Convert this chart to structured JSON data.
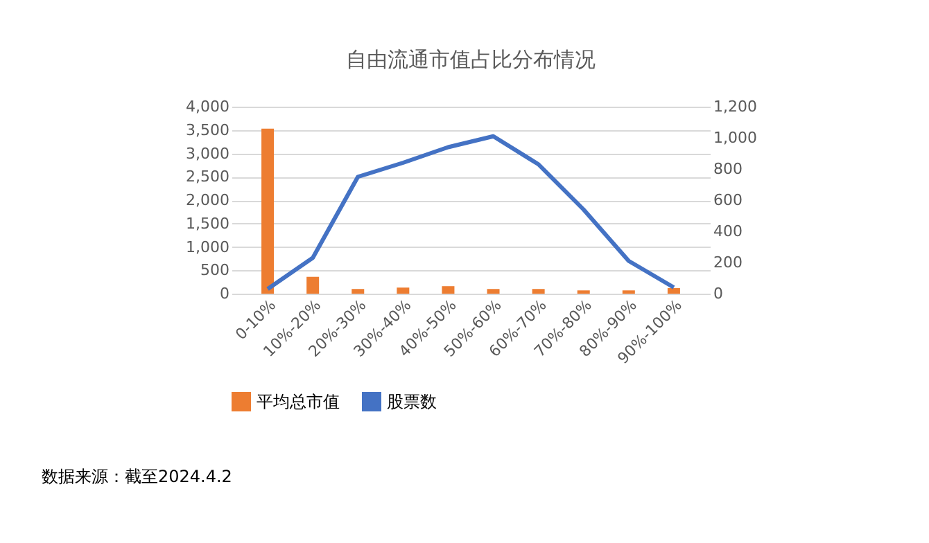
{
  "chart_data": {
    "type": "bar",
    "title": "自由流通市值占比分布情况",
    "categories": [
      "0-10%",
      "10%-20%",
      "20%-30%",
      "30%-40%",
      "40%-50%",
      "50%-60%",
      "60%-70%",
      "70%-80%",
      "80%-90%",
      "90%-100%"
    ],
    "series": [
      {
        "name": "平均总市值",
        "color": "#ed7d31",
        "values": [
          3530,
          360,
          100,
          130,
          160,
          100,
          100,
          70,
          70,
          120
        ]
      },
      {
        "name": "股票数",
        "type": "line",
        "axis": "y2",
        "color": "#4472c4",
        "values": [
          30,
          230,
          750,
          840,
          940,
          1010,
          830,
          540,
          210,
          40
        ]
      }
    ],
    "ylim": [
      0,
      4000
    ],
    "yticks": [
      0,
      500,
      {
        "value": 1000,
        "label": "1,000"
      },
      {
        "value": 1500,
        "label": "1,500"
      },
      {
        "value": 2000,
        "label": "2,000"
      },
      {
        "value": 2500,
        "label": "2,500"
      },
      {
        "value": 3000,
        "label": "3,000"
      },
      {
        "value": 3500,
        "label": "3,500"
      },
      {
        "value": 4000,
        "label": "4,000"
      }
    ],
    "y2lim": [
      0,
      1200
    ],
    "y2ticks": [
      0,
      200,
      400,
      600,
      800,
      {
        "value": 1000,
        "label": "1,000"
      },
      {
        "value": 1200,
        "label": "1,200"
      }
    ],
    "grid": "y",
    "legend": "bottom",
    "annotations": [
      "数据来源：截至2024.4.2"
    ]
  }
}
